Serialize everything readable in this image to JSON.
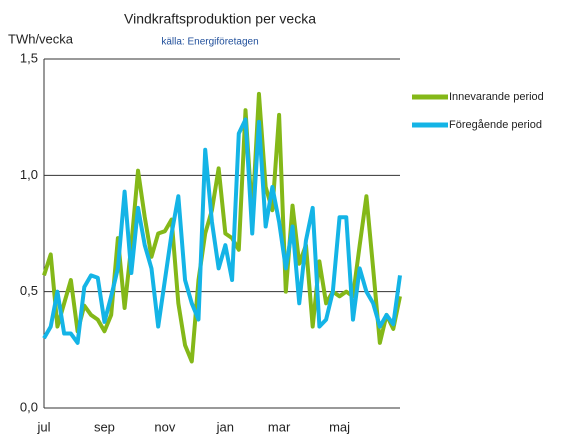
{
  "chart_data": {
    "type": "line",
    "title": "Vindkraftsproduktion  per vecka",
    "subtitle": "källa: Energiföretagen",
    "y_label": "TWh/vecka",
    "categories": [
      "jul",
      null,
      null,
      null,
      null,
      null,
      null,
      null,
      null,
      "sep",
      null,
      null,
      null,
      null,
      null,
      null,
      null,
      null,
      "nov",
      null,
      null,
      null,
      null,
      null,
      null,
      null,
      null,
      "jan",
      null,
      null,
      null,
      null,
      null,
      null,
      null,
      "mar",
      null,
      null,
      null,
      null,
      null,
      null,
      null,
      null,
      "maj",
      null,
      null,
      null,
      null,
      null,
      null,
      null,
      null,
      null
    ],
    "series": [
      {
        "name": "Innevarande period",
        "color": "#84b818",
        "values": [
          0.57,
          0.66,
          0.35,
          0.45,
          0.55,
          0.33,
          0.44,
          0.4,
          0.38,
          0.33,
          0.4,
          0.73,
          0.43,
          0.7,
          1.02,
          0.82,
          0.65,
          0.75,
          0.76,
          0.81,
          0.45,
          0.27,
          0.2,
          0.55,
          0.75,
          0.85,
          1.03,
          0.75,
          0.73,
          0.68,
          1.28,
          0.82,
          1.35,
          0.95,
          0.85,
          1.26,
          0.5,
          0.87,
          0.62,
          0.7,
          0.35,
          0.63,
          0.45,
          0.5,
          0.48,
          0.5,
          0.48,
          0.7,
          0.91,
          0.6,
          0.28,
          0.4,
          0.34,
          0.48
        ]
      },
      {
        "name": "Föregående period",
        "color": "#14b4e6",
        "values": [
          0.3,
          0.35,
          0.5,
          0.32,
          0.32,
          0.28,
          0.52,
          0.57,
          0.56,
          0.37,
          0.48,
          0.6,
          0.93,
          0.58,
          0.86,
          0.7,
          0.6,
          0.35,
          0.55,
          0.75,
          0.91,
          0.55,
          0.45,
          0.38,
          1.11,
          0.8,
          0.6,
          0.7,
          0.55,
          1.18,
          1.24,
          0.75,
          1.23,
          0.78,
          0.95,
          0.8,
          0.6,
          0.78,
          0.45,
          0.72,
          0.86,
          0.35,
          0.38,
          0.5,
          0.82,
          0.82,
          0.38,
          0.6,
          0.5,
          0.45,
          0.35,
          0.4,
          0.36,
          0.57
        ]
      }
    ],
    "ylim": [
      0,
      1.5
    ],
    "yticks": [
      {
        "value": 0,
        "label": "0,0"
      },
      {
        "value": 0.5,
        "label": "0,5"
      },
      {
        "value": 1,
        "label": "1,0"
      },
      {
        "value": 1.5,
        "label": "1,5"
      }
    ],
    "grid": true,
    "legend": "right"
  }
}
